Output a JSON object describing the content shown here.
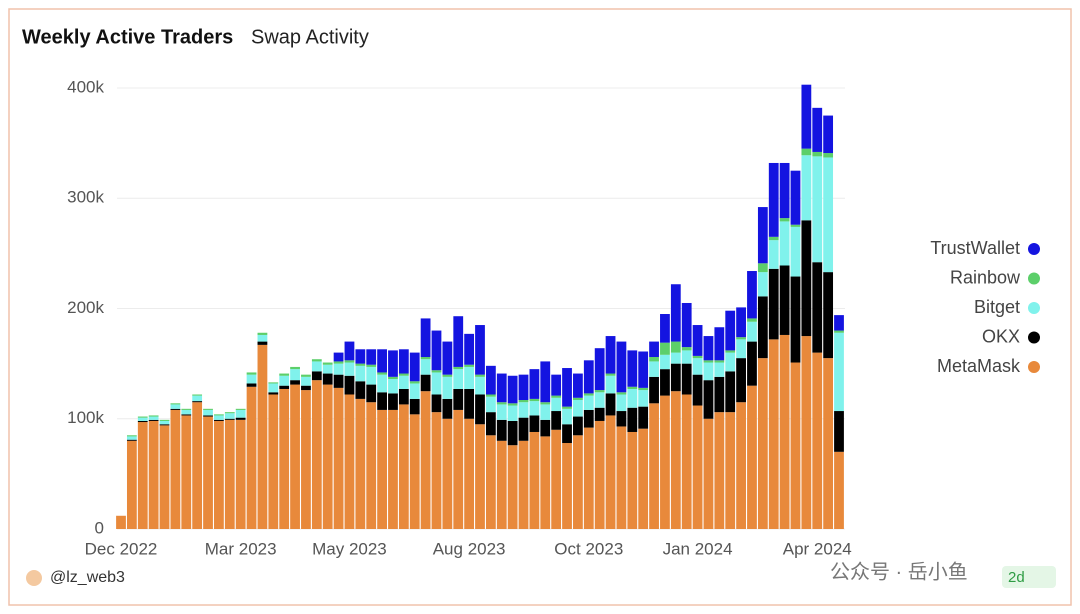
{
  "header": {
    "title": "Weekly Active Traders",
    "tab": "Swap Activity"
  },
  "chart_data": {
    "type": "stacked-bar",
    "categories": [
      "Dec 2022",
      null,
      null,
      null,
      null,
      null,
      null,
      null,
      null,
      null,
      null,
      "Mar 2023",
      null,
      null,
      null,
      null,
      null,
      null,
      null,
      null,
      null,
      "May 2023",
      null,
      null,
      null,
      null,
      null,
      null,
      null,
      null,
      null,
      null,
      "Aug 2023",
      null,
      null,
      null,
      null,
      null,
      null,
      null,
      null,
      null,
      null,
      "Oct 2023",
      null,
      null,
      null,
      null,
      null,
      null,
      null,
      null,
      null,
      "Jan 2024",
      null,
      null,
      null,
      null,
      null,
      null,
      null,
      null,
      null,
      null,
      "Apr 2024",
      null,
      null
    ],
    "series": [
      {
        "name": "MetaMask",
        "color": "#e8893b",
        "values": [
          12000,
          80000,
          97000,
          98000,
          94000,
          108000,
          103000,
          115000,
          102000,
          98000,
          99000,
          99000,
          129000,
          167000,
          122000,
          127000,
          131000,
          126000,
          135000,
          131000,
          128000,
          122000,
          118000,
          115000,
          108000,
          108000,
          113000,
          104000,
          125000,
          106000,
          100000,
          108000,
          100000,
          95000,
          85000,
          80000,
          76000,
          80000,
          88000,
          84000,
          90000,
          78000,
          85000,
          92000,
          98000,
          103000,
          93000,
          88000,
          91000,
          114000,
          121000,
          125000,
          122000,
          112000,
          100000,
          106000,
          106000,
          115000,
          130000,
          155000,
          172000,
          176000,
          151000,
          175000,
          160000,
          155000,
          70000
        ]
      },
      {
        "name": "OKX",
        "color": "#000000",
        "values": [
          0,
          1000,
          1000,
          1000,
          1000,
          1000,
          1000,
          1000,
          1000,
          1000,
          1000,
          2000,
          3000,
          3000,
          2000,
          3000,
          4000,
          4000,
          8000,
          10000,
          12000,
          17000,
          16000,
          16000,
          16000,
          15000,
          14000,
          14000,
          15000,
          16000,
          18000,
          19000,
          27000,
          27000,
          21000,
          19000,
          22000,
          21000,
          15000,
          15000,
          17000,
          17000,
          17000,
          16000,
          12000,
          20000,
          14000,
          22000,
          20000,
          24000,
          24000,
          25000,
          28000,
          28000,
          35000,
          32000,
          37000,
          40000,
          40000,
          56000,
          64000,
          63000,
          78000,
          105000,
          82000,
          78000,
          37000
        ]
      },
      {
        "name": "Bitget",
        "color": "#80f2ec",
        "values": [
          0,
          3000,
          3000,
          3000,
          3000,
          4000,
          4000,
          5000,
          5000,
          4000,
          5000,
          7000,
          8000,
          6000,
          8000,
          9000,
          10000,
          8000,
          9000,
          8000,
          10000,
          12000,
          14000,
          16000,
          16000,
          13000,
          12000,
          14000,
          14000,
          20000,
          20000,
          18000,
          20000,
          16000,
          14000,
          14000,
          14000,
          14000,
          13000,
          14000,
          12000,
          14000,
          15000,
          13000,
          14000,
          16000,
          15000,
          17000,
          15000,
          14000,
          13000,
          10000,
          12000,
          15000,
          16000,
          13000,
          17000,
          17000,
          18000,
          22000,
          26000,
          40000,
          45000,
          59000,
          96000,
          104000,
          71000
        ]
      },
      {
        "name": "Rainbow",
        "color": "#5ccf6a",
        "values": [
          0,
          1000,
          1000,
          1000,
          1000,
          1000,
          1000,
          1000,
          1000,
          1000,
          1000,
          1000,
          2000,
          2000,
          1000,
          2000,
          2000,
          2000,
          2000,
          2000,
          2000,
          2000,
          2000,
          2000,
          2000,
          2000,
          2000,
          2000,
          2000,
          2000,
          2000,
          2000,
          2000,
          2000,
          2000,
          2000,
          2000,
          2000,
          2000,
          2000,
          2000,
          2000,
          2000,
          2000,
          2000,
          2000,
          2000,
          2000,
          2000,
          4000,
          11000,
          10000,
          3000,
          2000,
          2000,
          2000,
          2000,
          2000,
          3000,
          8000,
          3000,
          3000,
          2000,
          6000,
          4000,
          4000,
          2000
        ]
      },
      {
        "name": "TrustWallet",
        "color": "#1414e0",
        "values": [
          0,
          0,
          0,
          0,
          0,
          0,
          0,
          0,
          0,
          0,
          0,
          0,
          0,
          0,
          0,
          0,
          0,
          0,
          0,
          0,
          8000,
          17000,
          13000,
          14000,
          21000,
          24000,
          22000,
          26000,
          35000,
          36000,
          30000,
          46000,
          28000,
          45000,
          26000,
          26000,
          25000,
          23000,
          27000,
          37000,
          19000,
          35000,
          22000,
          30000,
          38000,
          34000,
          46000,
          33000,
          33000,
          14000,
          26000,
          52000,
          40000,
          28000,
          22000,
          30000,
          36000,
          27000,
          43000,
          51000,
          67000,
          50000,
          49000,
          58000,
          40000,
          34000,
          14000
        ]
      }
    ],
    "ylim": [
      0,
      420000
    ],
    "yticks": [
      0,
      {
        "value": 100000,
        "label": "100k"
      },
      {
        "value": 200000,
        "label": "200k"
      },
      {
        "value": 300000,
        "label": "300k"
      },
      {
        "value": 400000,
        "label": "400k"
      }
    ],
    "grid": true,
    "legend": "right"
  },
  "footer": {
    "author": "@lz_web3",
    "watermark": "公众号 · 岳小鱼",
    "age": "2d"
  }
}
